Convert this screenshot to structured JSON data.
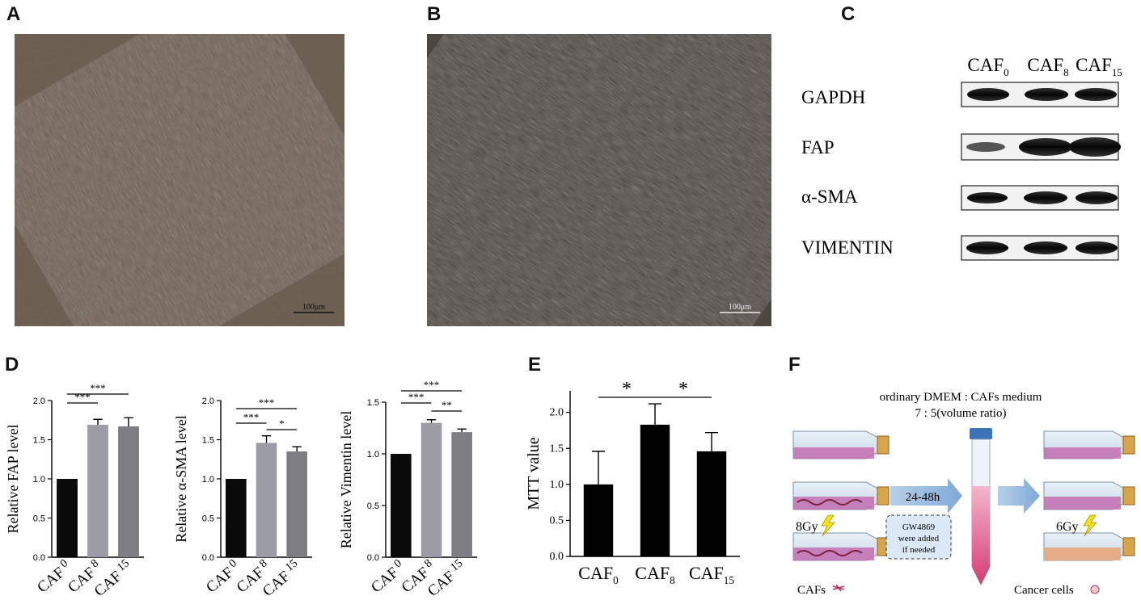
{
  "panels": {
    "A": {
      "label": "A",
      "scale_bar": "100μm"
    },
    "B": {
      "label": "B",
      "scale_bar": "100μm"
    },
    "C": {
      "label": "C",
      "lanes": [
        "CAF",
        "CAF",
        "CAF"
      ],
      "lane_subs": [
        "0",
        "8",
        "15"
      ],
      "proteins": [
        "GAPDH",
        "FAP",
        "α-SMA",
        "VIMENTIN"
      ]
    },
    "D": {
      "label": "D"
    },
    "E": {
      "label": "E"
    },
    "F": {
      "label": "F",
      "ratio_line1": "ordinary DMEM : CAFs medium",
      "ratio_line2": "7 : 5(volume ratio)",
      "time": "24-48h",
      "dose_left": "8Gy",
      "dose_right": "6Gy",
      "inhibitor": [
        "GW4869",
        "were added",
        "if needed"
      ],
      "cafs_label": "CAFs",
      "cancer_label": "Cancer cells"
    }
  },
  "chart_data": [
    {
      "type": "bar",
      "categories": [
        "CAF 0",
        "CAF 8",
        "CAF 15"
      ],
      "cat_main": [
        "CAF",
        "CAF",
        "CAF"
      ],
      "cat_sub": [
        "0",
        "8",
        "15"
      ],
      "values": [
        1.0,
        1.69,
        1.67
      ],
      "errors": [
        0,
        0.07,
        0.11
      ],
      "colors": [
        "#0a0a0a",
        "#9c9ca6",
        "#7d7d82"
      ],
      "ylabel": "Relative FAP level",
      "ylim": [
        0,
        2.0
      ],
      "yticks": [
        "0.0",
        "0.5",
        "1.0",
        "1.5",
        "2.0"
      ],
      "sig": [
        {
          "from": 0,
          "to": 1,
          "label": "***"
        },
        {
          "from": 0,
          "to": 2,
          "label": "***"
        }
      ]
    },
    {
      "type": "bar",
      "categories": [
        "CAF 0",
        "CAF 8",
        "CAF 15"
      ],
      "cat_main": [
        "CAF",
        "CAF",
        "CAF"
      ],
      "cat_sub": [
        "0",
        "8",
        "15"
      ],
      "values": [
        1.0,
        1.46,
        1.35
      ],
      "errors": [
        0,
        0.09,
        0.06
      ],
      "colors": [
        "#0a0a0a",
        "#9c9ca6",
        "#7d7d82"
      ],
      "ylabel": "Relative α-SMA level",
      "ylim": [
        0,
        2.0
      ],
      "yticks": [
        "0.0",
        "0.5",
        "1.0",
        "1.5",
        "2.0"
      ],
      "sig": [
        {
          "from": 0,
          "to": 1,
          "label": "***"
        },
        {
          "from": 0,
          "to": 2,
          "label": "***"
        },
        {
          "from": 1,
          "to": 2,
          "label": "*"
        }
      ]
    },
    {
      "type": "bar",
      "categories": [
        "CAF 0",
        "CAF 8",
        "CAF 15"
      ],
      "cat_main": [
        "CAF",
        "CAF",
        "CAF"
      ],
      "cat_sub": [
        "0",
        "8",
        "15"
      ],
      "values": [
        1.0,
        1.3,
        1.21
      ],
      "errors": [
        0,
        0.03,
        0.03
      ],
      "colors": [
        "#0a0a0a",
        "#9c9ca6",
        "#7d7d82"
      ],
      "ylabel": "Relative Vimentin level",
      "ylim": [
        0,
        1.5
      ],
      "yticks": [
        "0.0",
        "0.5",
        "1.0",
        "1.5"
      ],
      "sig": [
        {
          "from": 0,
          "to": 1,
          "label": "***"
        },
        {
          "from": 0,
          "to": 2,
          "label": "***"
        },
        {
          "from": 1,
          "to": 2,
          "label": "**"
        }
      ]
    },
    {
      "type": "bar",
      "categories": [
        "CAF 0",
        "CAF 8",
        "CAF 15"
      ],
      "cat_main": [
        "CAF",
        "CAF",
        "CAF"
      ],
      "cat_sub": [
        "0",
        "8",
        "15"
      ],
      "values": [
        1.0,
        1.83,
        1.46
      ],
      "errors": [
        0.46,
        0.29,
        0.26
      ],
      "colors": [
        "#000000",
        "#000000",
        "#000000"
      ],
      "ylabel": "MTT value",
      "ylim": [
        0,
        2.3
      ],
      "yticks": [
        "0.0",
        "0.5",
        "1.0",
        "1.5",
        "2.0"
      ],
      "sig": [
        {
          "from": 0,
          "to": 1,
          "label": "*"
        },
        {
          "from": 1,
          "to": 2,
          "label": "*"
        }
      ]
    }
  ]
}
